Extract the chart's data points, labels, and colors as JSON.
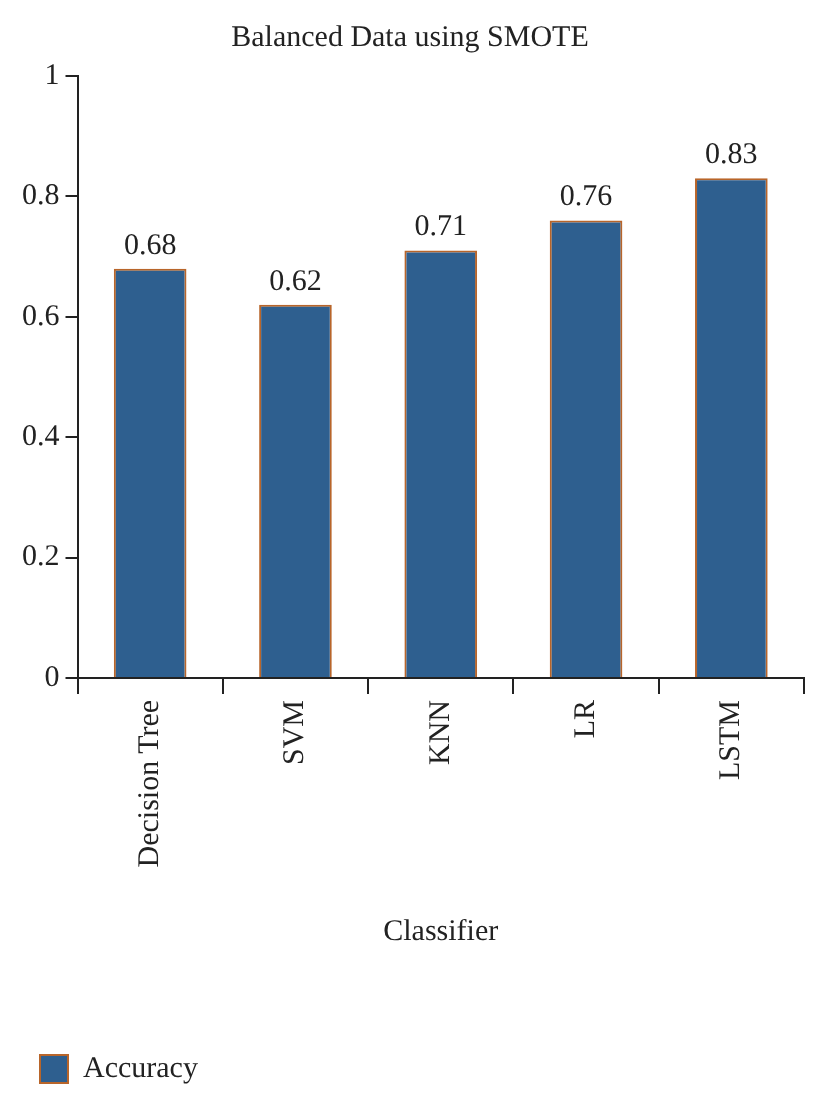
{
  "chart_data": {
    "type": "bar",
    "title": "Balanced Data using SMOTE",
    "xlabel": "Classifier",
    "categories": [
      "Decision Tree",
      "SVM",
      "KNN",
      "LR",
      "LSTM"
    ],
    "series": [
      {
        "name": "Accuracy",
        "color": "#2e5f8f",
        "values": [
          0.68,
          0.62,
          0.71,
          0.76,
          0.83
        ]
      }
    ],
    "ylim": [
      0,
      1
    ],
    "yticks": [
      0,
      0.2,
      0.4,
      0.6,
      0.8,
      1
    ],
    "grid": false,
    "legend": "bottom left",
    "data_labels": true
  }
}
